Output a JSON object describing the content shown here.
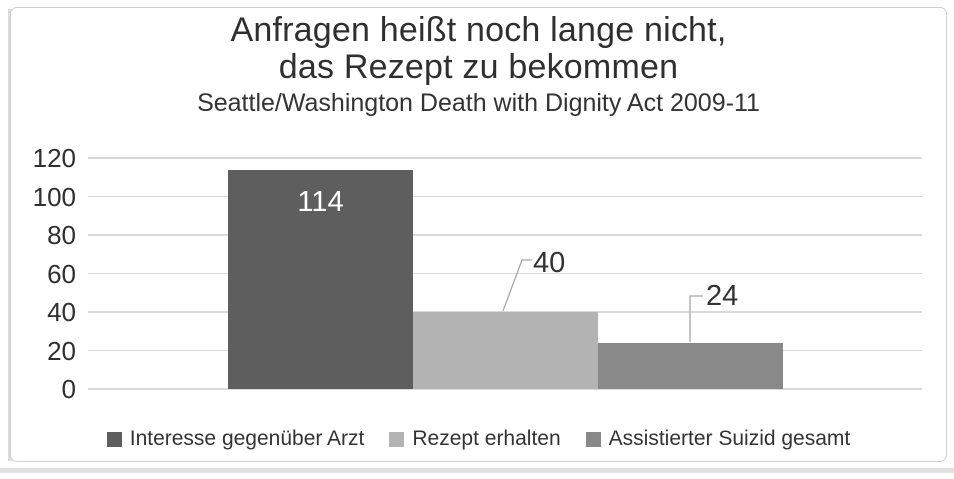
{
  "chart_data": {
    "type": "bar",
    "title": "Anfragen heißt noch lange nicht, das Rezept zu bekommen",
    "title_lines": [
      "Anfragen heißt noch lange nicht,",
      "das Rezept zu bekommen"
    ],
    "subtitle": "Seattle/Washington Death with Dignity Act 2009-11",
    "categories": [
      "Interesse gegenüber Arzt",
      "Rezept erhalten",
      "Assistierter Suizid gesamt"
    ],
    "series": [
      {
        "name": "Interesse gegenüber Arzt",
        "value": 114,
        "color": "#5e5e5e",
        "label_color": "#ffffff",
        "label_placement": "inside"
      },
      {
        "name": "Rezept erhalten",
        "value": 40,
        "color": "#b3b3b3",
        "label_color": "#333333",
        "label_placement": "callout"
      },
      {
        "name": "Assistierter Suizid gesamt",
        "value": 24,
        "color": "#898989",
        "label_color": "#333333",
        "label_placement": "callout"
      }
    ],
    "ylim": [
      0,
      120
    ],
    "ytick_step": 20,
    "ytick_labels": [
      "0",
      "20",
      "40",
      "60",
      "80",
      "100",
      "120"
    ],
    "grid": true,
    "legend_position": "bottom",
    "colors": {
      "gridline": "#d9d9d9",
      "leader_line": "#a6a6a6",
      "title_text": "#2f2f2f",
      "axis_text": "#2f2f2f",
      "frame_border": "#cfcfcf"
    }
  }
}
